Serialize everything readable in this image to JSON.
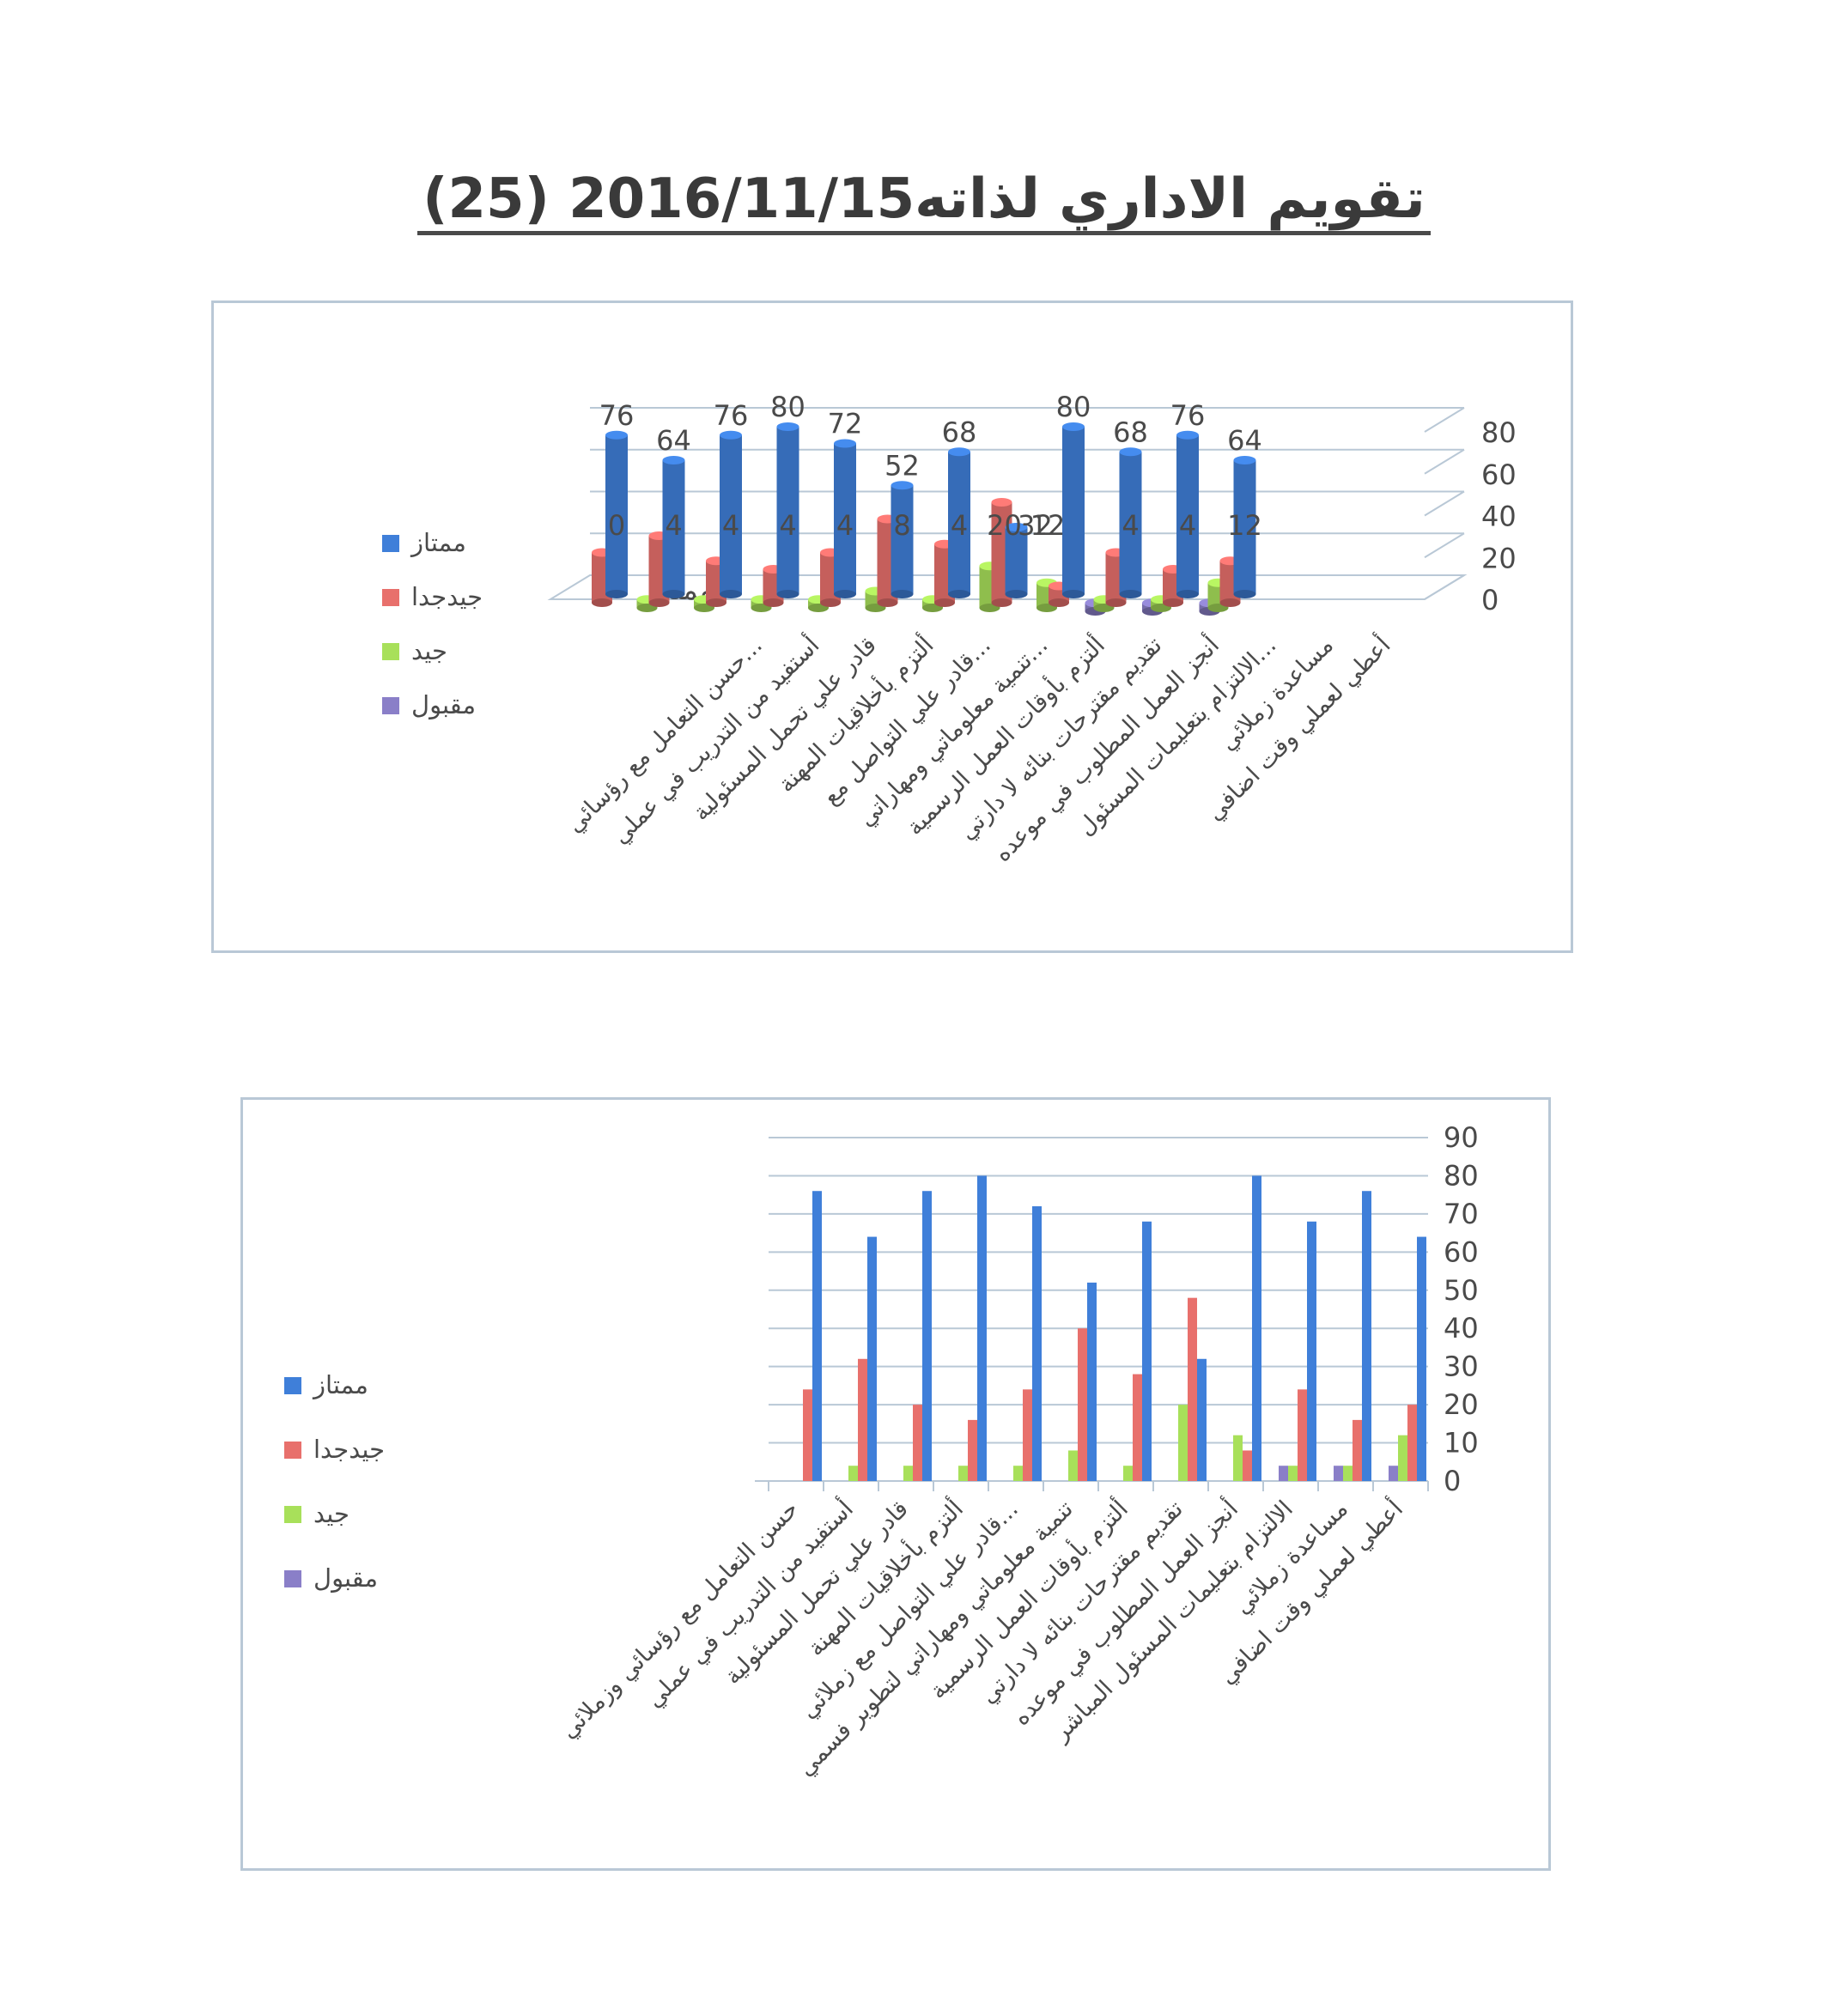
{
  "page": {
    "title": "تقويم الاداري لذاته2016/11/15 (25)"
  },
  "colors": {
    "excellent": "#3f7fd9",
    "very_good": "#e8706c",
    "good": "#a8e05a",
    "acceptable": "#8a7fc8",
    "grid": "#b9c8d6",
    "text": "#4a4a4a"
  },
  "chart_data": [
    {
      "type": "bar",
      "title": "",
      "xlabel": "",
      "ylabel": "",
      "ylim": [
        0,
        80
      ],
      "yticks": [
        0,
        20,
        40,
        60,
        80
      ],
      "depth_axis_label": "ممتاز",
      "legend_position": "left",
      "categories": [
        "حسن التعامل مع رؤسائي...",
        "أستفيد من التدريب في عملي",
        "قادر علي تحمل المسئولية",
        "ألتزم بأخلاقيات المهنة",
        "قادر علي التواصل مع...",
        "تنمية معلوماتي ومهاراتي...",
        "ألتزم بأوقات العمل الرسمية",
        "تقديم مقترحات بنائه لا دارتي",
        "أنجز العمل المطلوب في موعده",
        "الالتزام بتعليمات المسئول...",
        "مساعدة زملائي",
        "أعطي لعملي وقت اضافي"
      ],
      "series": [
        {
          "name": "ممتاز",
          "values": [
            76,
            64,
            76,
            80,
            72,
            52,
            68,
            32,
            80,
            68,
            76,
            64
          ]
        },
        {
          "name": "جيدجدا",
          "values": [
            24,
            32,
            20,
            16,
            24,
            40,
            28,
            48,
            8,
            24,
            16,
            20
          ]
        },
        {
          "name": "جيد",
          "values": [
            0,
            4,
            4,
            4,
            4,
            8,
            4,
            20,
            12,
            4,
            4,
            12
          ]
        },
        {
          "name": "مقبول",
          "values": [
            0,
            0,
            0,
            0,
            0,
            0,
            0,
            0,
            0,
            4,
            4,
            4
          ]
        }
      ],
      "data_labels": [
        {
          "text": "76",
          "category": 0
        },
        {
          "text": "64",
          "category": 1
        },
        {
          "text": "76",
          "category": 2
        },
        {
          "text": "80",
          "category": 3
        },
        {
          "text": "72",
          "category": 4
        },
        {
          "text": "52",
          "category": 5
        },
        {
          "text": "68",
          "category": 6
        },
        {
          "text": "80",
          "category": 8
        },
        {
          "text": "68",
          "category": 9
        },
        {
          "text": "76",
          "category": 10
        },
        {
          "text": "64",
          "category": 11
        },
        {
          "text": "0",
          "category": 0
        },
        {
          "text": "4",
          "category": 1
        },
        {
          "text": "4",
          "category": 2
        },
        {
          "text": "4",
          "category": 3
        },
        {
          "text": "4",
          "category": 4
        },
        {
          "text": "8",
          "category": 5
        },
        {
          "text": "4",
          "category": 6
        },
        {
          "text": "20",
          "category": 7
        },
        {
          "text": "32",
          "category": 7
        },
        {
          "text": "12",
          "category": 8
        },
        {
          "text": "4",
          "category": 9
        },
        {
          "text": "4",
          "category": 10
        },
        {
          "text": "12",
          "category": 11
        }
      ]
    },
    {
      "type": "bar",
      "title": "",
      "xlabel": "",
      "ylabel": "",
      "ylim": [
        0,
        90
      ],
      "yticks": [
        0,
        10,
        20,
        30,
        40,
        50,
        60,
        70,
        80,
        90
      ],
      "legend_position": "left",
      "categories": [
        "حسن التعامل مع رؤسائي وزملائي",
        "أستفيد من التدريب في عملي",
        "قادر علي تحمل المسئولية",
        "ألتزم بأخلاقيات المهنة",
        "قادر علي التواصل مع زملائي...",
        "تنمية معلوماتي ومهاراتي لتطوير فسمي",
        "ألتزم بأوقات العمل الرسمية",
        "تقديم مقترحات بنائه لا دارتي",
        "أنجز العمل المطلوب في موعده",
        "الالتزام بتعليمات المسئول المباشر",
        "مساعدة زملائي",
        "أعطي لعملي وقت اضافي"
      ],
      "series": [
        {
          "name": "ممتاز",
          "values": [
            76,
            64,
            76,
            80,
            72,
            52,
            68,
            32,
            80,
            68,
            76,
            64
          ]
        },
        {
          "name": "جيدجدا",
          "values": [
            24,
            32,
            20,
            16,
            24,
            40,
            28,
            48,
            8,
            24,
            16,
            20
          ]
        },
        {
          "name": "جيد",
          "values": [
            0,
            4,
            4,
            4,
            4,
            8,
            4,
            20,
            12,
            4,
            4,
            12
          ]
        },
        {
          "name": "مقبول",
          "values": [
            0,
            0,
            0,
            0,
            0,
            0,
            0,
            0,
            0,
            4,
            4,
            4
          ]
        }
      ]
    }
  ]
}
